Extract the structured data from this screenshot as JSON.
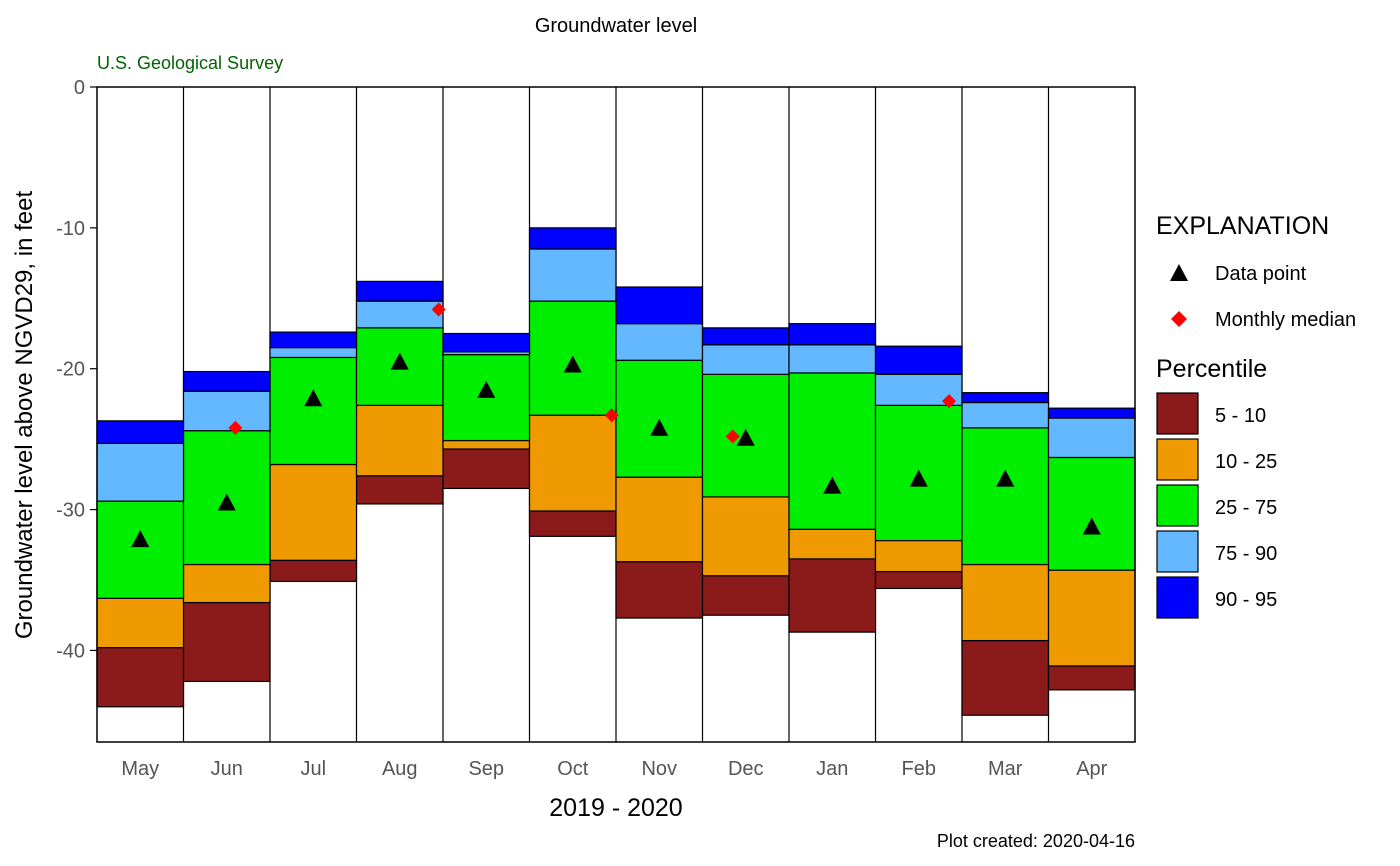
{
  "chart_data": {
    "type": "bar",
    "title": "Groundwater level",
    "subtitle": "U.S. Geological Survey",
    "xlabel": "2019 - 2020",
    "ylabel": "Groundwater level above NGVD29, in feet",
    "footer": "Plot created: 2020-04-16",
    "ylim": [
      -46.5,
      0
    ],
    "yticks": [
      0,
      -10,
      -20,
      -30,
      -40
    ],
    "ytick_labels": [
      "0",
      "-10",
      "-20",
      "-30",
      "-40"
    ],
    "grid": false,
    "legend_position": "right",
    "categories": [
      "May",
      "Jun",
      "Jul",
      "Aug",
      "Sep",
      "Oct",
      "Nov",
      "Dec",
      "Jan",
      "Feb",
      "Mar",
      "Apr"
    ],
    "percentile_bands": [
      {
        "name": "5 - 10",
        "color": "#8B1A1A",
        "lower": [
          -44.0,
          -42.2,
          -35.1,
          -29.6,
          -28.5,
          -31.9,
          -37.7,
          -37.5,
          -38.7,
          -35.6,
          -44.6,
          -42.8
        ],
        "upper": [
          -39.8,
          -36.6,
          -33.6,
          -27.6,
          -25.7,
          -30.1,
          -33.7,
          -34.7,
          -33.5,
          -34.4,
          -39.3,
          -41.1
        ]
      },
      {
        "name": "10 - 25",
        "color": "#EE9A00",
        "lower": [
          -39.8,
          -36.6,
          -33.6,
          -27.6,
          -25.7,
          -30.1,
          -33.7,
          -34.7,
          -33.5,
          -34.4,
          -39.3,
          -41.1
        ],
        "upper": [
          -36.3,
          -33.9,
          -26.8,
          -22.6,
          -25.1,
          -23.3,
          -27.7,
          -29.1,
          -31.4,
          -32.2,
          -33.9,
          -34.3
        ]
      },
      {
        "name": "25 - 75",
        "color": "#00EE00",
        "lower": [
          -36.3,
          -33.9,
          -26.8,
          -22.6,
          -25.1,
          -23.3,
          -27.7,
          -29.1,
          -31.4,
          -32.2,
          -33.9,
          -34.3
        ],
        "upper": [
          -29.4,
          -24.4,
          -19.2,
          -17.1,
          -19.0,
          -15.2,
          -19.4,
          -20.4,
          -20.3,
          -22.6,
          -24.2,
          -26.3
        ]
      },
      {
        "name": "75 - 90",
        "color": "#63B8FF",
        "lower": [
          -29.4,
          -24.4,
          -19.2,
          -17.1,
          -19.0,
          -15.2,
          -19.4,
          -20.4,
          -20.3,
          -22.6,
          -24.2,
          -26.3
        ],
        "upper": [
          -25.3,
          -21.6,
          -18.5,
          -15.2,
          -18.8,
          -11.5,
          -16.8,
          -18.3,
          -18.3,
          -20.4,
          -22.4,
          -23.5
        ]
      },
      {
        "name": "90 - 95",
        "color": "#0000FF",
        "lower": [
          -25.3,
          -21.6,
          -18.5,
          -15.2,
          -18.8,
          -11.5,
          -16.8,
          -18.3,
          -18.3,
          -20.4,
          -22.4,
          -23.5
        ],
        "upper": [
          -23.7,
          -20.2,
          -17.4,
          -13.8,
          -17.5,
          -10.0,
          -14.2,
          -17.1,
          -16.8,
          -18.4,
          -21.7,
          -22.8
        ]
      }
    ],
    "data_points": {
      "name": "Data point",
      "color": "#000000",
      "values": [
        -32.1,
        -29.5,
        -22.1,
        -19.5,
        -21.5,
        -19.7,
        -24.2,
        -24.9,
        -28.3,
        -27.8,
        -27.8,
        -31.2
      ]
    },
    "monthly_median": {
      "name": "Monthly median",
      "color": "#FF0000",
      "points": [
        {
          "month": "Jun",
          "position": 0.6,
          "value": -24.2
        },
        {
          "month": "Aug",
          "position": 0.95,
          "value": -15.8
        },
        {
          "month": "Oct",
          "position": 0.95,
          "value": -23.3
        },
        {
          "month": "Dec",
          "position": 0.35,
          "value": -24.8
        },
        {
          "month": "Feb",
          "position": 0.85,
          "value": -22.3
        }
      ]
    },
    "legend": {
      "heading": "EXPLANATION",
      "data_point_label": "Data point",
      "median_label": "Monthly median",
      "percentile_heading": "Percentile"
    }
  }
}
